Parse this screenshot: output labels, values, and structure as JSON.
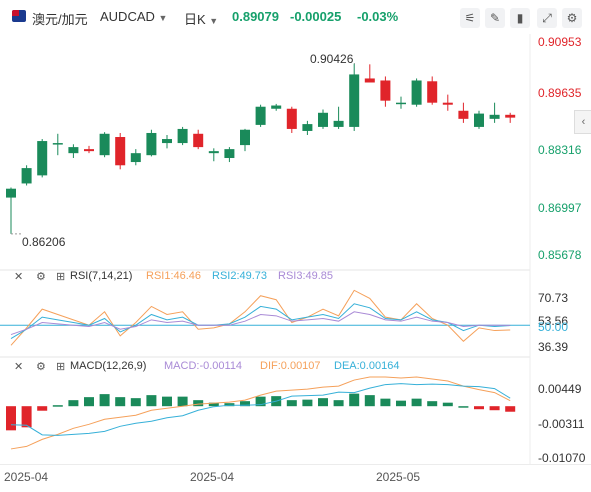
{
  "header": {
    "symbol_cn": "澳元/加元",
    "symbol_en": "AUDCAD",
    "period": "日K",
    "price": "0.89079",
    "change": "-0.00025",
    "change_pct": "-0.03%",
    "toolbar_icons": [
      "indicator-icon",
      "draw-icon",
      "candle-style-icon",
      "fullscreen-icon",
      "settings-icon"
    ]
  },
  "colors": {
    "up": "#1a8a5a",
    "down": "#e0242a",
    "rsi1": "#f5a05a",
    "rsi2": "#36b0d8",
    "rsi3": "#a98ad6",
    "dif": "#f5a05a",
    "dea": "#36b0d8",
    "axis_up_label": "#e0242a",
    "axis_down_label": "#16a06b"
  },
  "price_axis": {
    "ticks": [
      "0.90953",
      "0.89635",
      "0.88316",
      "0.86997",
      "0.85678"
    ],
    "high_label": "0.90426",
    "low_label": "0.86206"
  },
  "rsi": {
    "title": "RSI(7,14,21)",
    "rsi1_label": "RSI1:46.46",
    "rsi2_label": "RSI2:49.73",
    "rsi3_label": "RSI3:49.85",
    "ticks": [
      "70.73",
      "53.56",
      "50.00",
      "36.39"
    ]
  },
  "macd": {
    "title": "MACD(12,26,9)",
    "macd_label": "MACD:-0.00114",
    "dif_label": "DIF:0.00107",
    "dea_label": "DEA:0.00164",
    "ticks": [
      "0.00449",
      "-0.00311",
      "-0.01070"
    ]
  },
  "x_axis": {
    "labels": [
      "2025-04",
      "2025-04",
      "2025-05"
    ]
  },
  "chart_data": {
    "type": "candlestick",
    "ylim": [
      0.85678,
      0.90953
    ],
    "candles": [
      {
        "o": 0.871,
        "h": 0.8735,
        "l": 0.862,
        "c": 0.8732
      },
      {
        "o": 0.8745,
        "h": 0.879,
        "l": 0.874,
        "c": 0.8783
      },
      {
        "o": 0.8765,
        "h": 0.8855,
        "l": 0.876,
        "c": 0.885
      },
      {
        "o": 0.8845,
        "h": 0.8868,
        "l": 0.8815,
        "c": 0.8845
      },
      {
        "o": 0.882,
        "h": 0.8842,
        "l": 0.8808,
        "c": 0.8835
      },
      {
        "o": 0.883,
        "h": 0.8838,
        "l": 0.882,
        "c": 0.8825
      },
      {
        "o": 0.8815,
        "h": 0.8872,
        "l": 0.881,
        "c": 0.8868
      },
      {
        "o": 0.886,
        "h": 0.887,
        "l": 0.878,
        "c": 0.879
      },
      {
        "o": 0.8798,
        "h": 0.883,
        "l": 0.879,
        "c": 0.882
      },
      {
        "o": 0.8815,
        "h": 0.8878,
        "l": 0.8812,
        "c": 0.887
      },
      {
        "o": 0.8845,
        "h": 0.8865,
        "l": 0.8832,
        "c": 0.8855
      },
      {
        "o": 0.8845,
        "h": 0.8885,
        "l": 0.884,
        "c": 0.888
      },
      {
        "o": 0.8868,
        "h": 0.8878,
        "l": 0.883,
        "c": 0.8835
      },
      {
        "o": 0.882,
        "h": 0.8832,
        "l": 0.88,
        "c": 0.8825
      },
      {
        "o": 0.8808,
        "h": 0.8835,
        "l": 0.8798,
        "c": 0.883
      },
      {
        "o": 0.884,
        "h": 0.888,
        "l": 0.8825,
        "c": 0.8878
      },
      {
        "o": 0.889,
        "h": 0.894,
        "l": 0.8885,
        "c": 0.8935
      },
      {
        "o": 0.893,
        "h": 0.8942,
        "l": 0.8925,
        "c": 0.8938
      },
      {
        "o": 0.893,
        "h": 0.8935,
        "l": 0.887,
        "c": 0.888
      },
      {
        "o": 0.8875,
        "h": 0.89,
        "l": 0.8865,
        "c": 0.8892
      },
      {
        "o": 0.8885,
        "h": 0.8928,
        "l": 0.888,
        "c": 0.892
      },
      {
        "o": 0.8885,
        "h": 0.8935,
        "l": 0.888,
        "c": 0.89
      },
      {
        "o": 0.8885,
        "h": 0.9042,
        "l": 0.8875,
        "c": 0.9015
      },
      {
        "o": 0.9005,
        "h": 0.904,
        "l": 0.8995,
        "c": 0.8995
      },
      {
        "o": 0.9,
        "h": 0.901,
        "l": 0.8935,
        "c": 0.895
      },
      {
        "o": 0.8945,
        "h": 0.896,
        "l": 0.893,
        "c": 0.8945
      },
      {
        "o": 0.894,
        "h": 0.9005,
        "l": 0.8935,
        "c": 0.9
      },
      {
        "o": 0.8998,
        "h": 0.901,
        "l": 0.894,
        "c": 0.8945
      },
      {
        "o": 0.8945,
        "h": 0.8965,
        "l": 0.8925,
        "c": 0.894
      },
      {
        "o": 0.8925,
        "h": 0.8945,
        "l": 0.8895,
        "c": 0.8905
      },
      {
        "o": 0.8885,
        "h": 0.8925,
        "l": 0.888,
        "c": 0.8918
      },
      {
        "o": 0.8905,
        "h": 0.8945,
        "l": 0.8895,
        "c": 0.8915
      },
      {
        "o": 0.8915,
        "h": 0.892,
        "l": 0.8895,
        "c": 0.8908
      }
    ],
    "rsi_range": [
      30,
      80
    ],
    "rsi1": [
      35,
      48,
      62,
      58,
      54,
      50,
      60,
      42,
      52,
      64,
      58,
      60,
      47,
      48,
      51,
      60,
      72,
      69,
      52,
      56,
      62,
      57,
      76,
      70,
      56,
      54,
      66,
      55,
      50,
      38,
      48,
      46,
      46.46
    ],
    "rsi2": [
      40,
      47,
      56,
      54,
      52,
      50,
      55,
      45,
      50,
      58,
      54,
      56,
      50,
      50,
      51,
      56,
      64,
      62,
      54,
      56,
      58,
      55,
      66,
      63,
      55,
      54,
      60,
      54,
      52,
      46,
      50,
      49,
      49.73
    ],
    "rsi3": [
      43,
      47,
      52,
      51,
      50,
      49,
      52,
      47,
      49,
      54,
      52,
      53,
      50,
      50,
      50,
      53,
      58,
      57,
      53,
      54,
      55,
      53,
      60,
      58,
      54,
      53,
      56,
      53,
      52,
      49,
      50,
      50,
      49.85
    ],
    "macd_range": [
      -0.0107,
      0.0068
    ],
    "macd_hist": [
      -0.0048,
      -0.0042,
      -0.0009,
      0.0002,
      0.0012,
      0.0018,
      0.0024,
      0.0018,
      0.0016,
      0.0022,
      0.0019,
      0.0019,
      0.0012,
      0.0007,
      0.0006,
      0.001,
      0.0019,
      0.002,
      0.0012,
      0.0013,
      0.0016,
      0.0012,
      0.0025,
      0.0022,
      0.0015,
      0.0011,
      0.0015,
      0.001,
      0.0007,
      0.0,
      -0.0006,
      -0.0008,
      -0.0011
    ],
    "dif": [
      -0.0085,
      -0.008,
      -0.0066,
      -0.0056,
      -0.0044,
      -0.0036,
      -0.0026,
      -0.0022,
      -0.0018,
      -0.0008,
      -0.0004,
      0.0,
      0.0004,
      0.0006,
      0.0008,
      0.0012,
      0.0022,
      0.003,
      0.0032,
      0.0034,
      0.0038,
      0.004,
      0.0052,
      0.0058,
      0.0058,
      0.0056,
      0.0058,
      0.0054,
      0.005,
      0.004,
      0.0033,
      0.0027,
      0.0011
    ],
    "dea": [
      -0.0037,
      -0.0038,
      -0.0057,
      -0.0058,
      -0.0056,
      -0.0054,
      -0.005,
      -0.004,
      -0.0034,
      -0.003,
      -0.0023,
      -0.0019,
      -0.0008,
      -0.0001,
      0.0002,
      0.0002,
      0.0003,
      0.001,
      0.002,
      0.0021,
      0.0022,
      0.0028,
      0.0027,
      0.0036,
      0.0043,
      0.0045,
      0.0043,
      0.0044,
      0.0043,
      0.004,
      0.0039,
      0.0035,
      0.0016
    ]
  }
}
